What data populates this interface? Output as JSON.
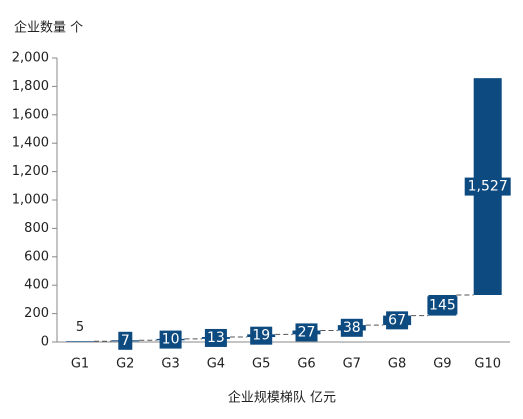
{
  "chart_data": {
    "type": "waterfall",
    "ylabel": "企业数量 个",
    "xlabel": "企业规模梯队 亿元",
    "categories": [
      "G1",
      "G2",
      "G3",
      "G4",
      "G5",
      "G6",
      "G7",
      "G8",
      "G9",
      "G10"
    ],
    "values": [
      5,
      7,
      10,
      13,
      19,
      27,
      38,
      67,
      145,
      1527
    ],
    "value_labels": [
      "5",
      "7",
      "10",
      "13",
      "19",
      "27",
      "38",
      "67",
      "145",
      "1,527"
    ],
    "color": "#0d4a80",
    "ylim": [
      0,
      2000
    ],
    "yticks": [
      0,
      200,
      400,
      600,
      800,
      {
        "value": 1000,
        "label": "1,000"
      },
      {
        "value": 1200,
        "label": "1,200"
      },
      {
        "value": 1400,
        "label": "1,400"
      },
      {
        "value": 1600,
        "label": "1,600"
      },
      {
        "value": 1800,
        "label": "1,800"
      },
      {
        "value": 2000,
        "label": "2,000"
      }
    ]
  }
}
